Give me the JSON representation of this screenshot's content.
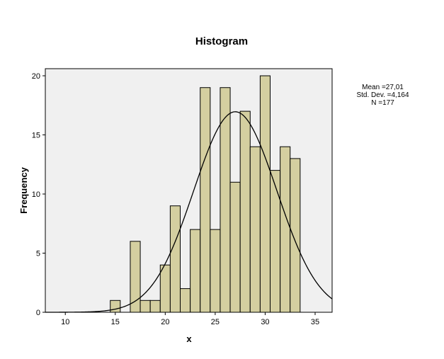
{
  "chart_data": {
    "type": "bar",
    "title": "Histogram",
    "xlabel": "x",
    "ylabel": "Frequency",
    "xlim": [
      8,
      36.7
    ],
    "ylim": [
      0,
      20.6
    ],
    "xticks": [
      10,
      15,
      20,
      25,
      30,
      35
    ],
    "yticks": [
      0,
      5,
      10,
      15,
      20
    ],
    "bin_width": 1,
    "bins": [
      {
        "x": 15,
        "count": 1
      },
      {
        "x": 17,
        "count": 6
      },
      {
        "x": 18,
        "count": 1
      },
      {
        "x": 19,
        "count": 1
      },
      {
        "x": 20,
        "count": 4
      },
      {
        "x": 21,
        "count": 9
      },
      {
        "x": 22,
        "count": 2
      },
      {
        "x": 23,
        "count": 7
      },
      {
        "x": 24,
        "count": 19
      },
      {
        "x": 25,
        "count": 7
      },
      {
        "x": 26,
        "count": 19
      },
      {
        "x": 27,
        "count": 11
      },
      {
        "x": 28,
        "count": 17
      },
      {
        "x": 29,
        "count": 14
      },
      {
        "x": 30,
        "count": 20
      },
      {
        "x": 31,
        "count": 12
      },
      {
        "x": 32,
        "count": 14
      },
      {
        "x": 33,
        "count": 13
      }
    ],
    "normal_curve": {
      "mean": 27.01,
      "sd": 4.164,
      "n": 177
    },
    "stats": {
      "mean_text": "Mean =27,01",
      "sd_text": "Std. Dev. =4,164",
      "n_text": "N =177"
    },
    "grid": false,
    "legend": "right",
    "colors": {
      "bar_fill": "#d4cfa0",
      "bar_stroke": "#000000",
      "plot_background": "#f0f0f0",
      "curve": "#000000"
    }
  }
}
